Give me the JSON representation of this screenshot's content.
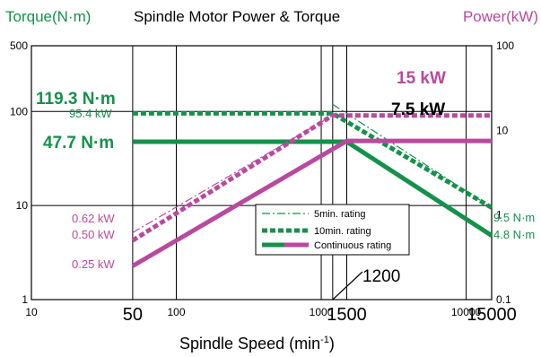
{
  "chart_data": {
    "type": "line",
    "title": "Spindle Motor Power & Torque",
    "left_axis_title": "Torque(N·m)",
    "right_axis_title": "Power(kW)",
    "xlabel": "Spindle Speed (min",
    "xlabel_sup": "-1",
    "xlabel_end": ")",
    "x_scale": "log",
    "y_scale": "log",
    "xlim": [
      10,
      15000
    ],
    "torque_ylim": [
      1,
      500
    ],
    "power_ylim": [
      0.1,
      100
    ],
    "x_ticks": [
      {
        "value": 10,
        "label": "10",
        "size": "small"
      },
      {
        "value": 50,
        "label": "50",
        "size": "large"
      },
      {
        "value": 100,
        "label": "100",
        "size": "small"
      },
      {
        "value": 1000,
        "label": "1000",
        "size": "small"
      },
      {
        "value": 1500,
        "label": "1500",
        "size": "large"
      },
      {
        "value": 10000,
        "label": "10000",
        "size": "small"
      },
      {
        "value": 15000,
        "label": "15000",
        "size": "large"
      }
    ],
    "x_gridlines": [
      50,
      100,
      1000,
      1200,
      1500,
      10000
    ],
    "torque_ticks": [
      {
        "value": 1,
        "label": "1"
      },
      {
        "value": 10,
        "label": "10"
      },
      {
        "value": 100,
        "label": "100"
      },
      {
        "value": 500,
        "label": "500"
      }
    ],
    "power_ticks": [
      {
        "value": 0.1,
        "label": "0.1"
      },
      {
        "value": 1,
        "label": "1"
      },
      {
        "value": 10,
        "label": "10"
      },
      {
        "value": 100,
        "label": "100"
      }
    ],
    "grid": true,
    "colors": {
      "torque": "#14914a",
      "power": "#b9499f",
      "grid": "#000000"
    },
    "series": [
      {
        "quantity": "torque",
        "rating": "5min",
        "points": [
          [
            1200,
            119.3
          ],
          [
            15000,
            9.5
          ]
        ]
      },
      {
        "quantity": "torque",
        "rating": "10min",
        "points": [
          [
            50,
            95.4
          ],
          [
            1200,
            95.4
          ],
          [
            15000,
            9.5
          ]
        ]
      },
      {
        "quantity": "torque",
        "rating": "continuous",
        "points": [
          [
            50,
            47.7
          ],
          [
            1500,
            47.7
          ],
          [
            15000,
            4.8
          ]
        ]
      },
      {
        "quantity": "power",
        "rating": "5min",
        "points": [
          [
            50,
            0.62
          ],
          [
            1200,
            15
          ]
        ]
      },
      {
        "quantity": "power",
        "rating": "10min",
        "points": [
          [
            50,
            0.5
          ],
          [
            1200,
            15
          ],
          [
            15000,
            15
          ]
        ]
      },
      {
        "quantity": "power",
        "rating": "continuous",
        "points": [
          [
            50,
            0.25
          ],
          [
            1500,
            7.5
          ],
          [
            15000,
            7.5
          ]
        ]
      }
    ],
    "legend": {
      "placement": "center-right",
      "items": [
        {
          "rating": "5min",
          "label": "5min. rating"
        },
        {
          "rating": "10min",
          "label": "10min. rating"
        },
        {
          "rating": "continuous",
          "label": "Continuous rating"
        }
      ]
    },
    "annotations": {
      "torque_5min": "119.3 N·m",
      "torque_10min": "95.4 kW",
      "torque_cont": "47.7 N·m",
      "power_10min": "15 kW",
      "power_cont": "7.5 kW",
      "power_start_5min": "0.62 kW",
      "power_start_10min": "0.50 kW",
      "power_start_cont": "0.25 kW",
      "torque_end_10min": "9.5 N·m",
      "torque_end_cont": "4.8 N·m",
      "speed_callout": "1200"
    }
  }
}
